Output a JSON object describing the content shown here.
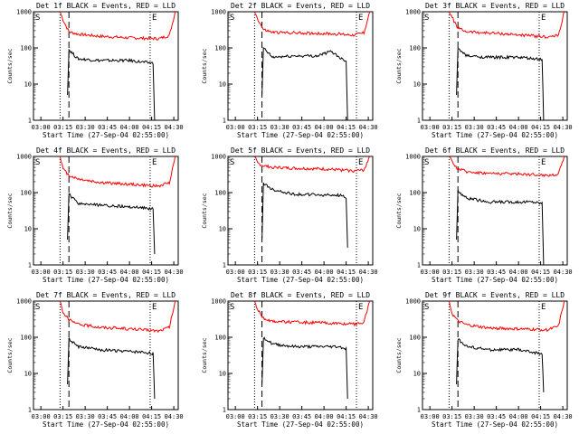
{
  "chart_data": [
    {
      "type": "line",
      "title": "Det 1f BLACK = Events, RED = LLD",
      "xlabel": "Start Time (27-Sep-04 02:55:00)",
      "ylabel": "Counts/sec",
      "yscale": "log",
      "ylim": [
        1,
        1000
      ],
      "y_ticks": [
        "1",
        "10",
        "100",
        "1000"
      ],
      "x_ticks": [
        "03:00",
        "03:15",
        "03:30",
        "03:45",
        "04:00",
        "04:15",
        "04:30"
      ],
      "xlim": [
        "02:55",
        "04:33"
      ],
      "markers": {
        "S": "S",
        "E": "E"
      },
      "dotted_lines": [
        "03:13",
        "04:14"
      ],
      "dashed_line": "03:19",
      "series": [
        {
          "color": "#ff0000",
          "x": [
            "03:13",
            "03:15",
            "03:19",
            "03:25",
            "03:40",
            "04:00",
            "04:20",
            "04:27",
            "04:31"
          ],
          "values": [
            1000,
            600,
            280,
            240,
            210,
            190,
            180,
            220,
            1000
          ]
        },
        {
          "color": "#000000",
          "x": [
            "03:18",
            "03:19",
            "03:25",
            "03:40",
            "04:00",
            "04:10",
            "04:16",
            "04:17"
          ],
          "values": [
            5,
            90,
            50,
            45,
            45,
            40,
            38,
            1
          ]
        }
      ]
    },
    {
      "type": "line",
      "title": "Det 2f BLACK = Events, RED = LLD",
      "xlabel": "Start Time (27-Sep-04 02:55:00)",
      "ylabel": "Counts/sec",
      "yscale": "log",
      "ylim": [
        1,
        1000
      ],
      "y_ticks": [
        "1",
        "10",
        "100",
        "1000"
      ],
      "x_ticks": [
        "03:00",
        "03:15",
        "03:30",
        "03:45",
        "04:00",
        "04:15",
        "04:30"
      ],
      "xlim": [
        "02:55",
        "04:33"
      ],
      "markers": {
        "S": "S",
        "E": "E"
      },
      "dotted_lines": [
        "03:13",
        "04:22"
      ],
      "dashed_line": "03:18",
      "series": [
        {
          "color": "#ff0000",
          "x": [
            "03:13",
            "03:15",
            "03:19",
            "03:25",
            "03:40",
            "04:00",
            "04:20",
            "04:27",
            "04:31"
          ],
          "values": [
            1000,
            650,
            320,
            270,
            260,
            250,
            230,
            260,
            1000
          ]
        },
        {
          "color": "#000000",
          "x": [
            "03:18",
            "03:19",
            "03:25",
            "03:40",
            "03:55",
            "04:05",
            "04:12",
            "04:15",
            "04:16"
          ],
          "values": [
            5,
            100,
            55,
            60,
            60,
            80,
            50,
            45,
            1
          ]
        }
      ]
    },
    {
      "type": "line",
      "title": "Det 3f BLACK = Events, RED = LLD",
      "xlabel": "Start Time (27-Sep-04 02:55:00)",
      "ylabel": "Counts/sec",
      "yscale": "log",
      "ylim": [
        1,
        1000
      ],
      "y_ticks": [
        "1",
        "10",
        "100",
        "1000"
      ],
      "x_ticks": [
        "03:00",
        "03:15",
        "03:30",
        "03:45",
        "04:00",
        "04:15",
        "04:30"
      ],
      "xlim": [
        "02:55",
        "04:33"
      ],
      "markers": {
        "S": "S",
        "E": "E"
      },
      "dotted_lines": [
        "03:13",
        "04:14"
      ],
      "dashed_line": "03:19",
      "series": [
        {
          "color": "#ff0000",
          "x": [
            "03:13",
            "03:15",
            "03:19",
            "03:25",
            "03:40",
            "04:00",
            "04:20",
            "04:27",
            "04:31"
          ],
          "values": [
            1000,
            700,
            350,
            280,
            260,
            230,
            200,
            220,
            1000
          ]
        },
        {
          "color": "#000000",
          "x": [
            "03:18",
            "03:19",
            "03:25",
            "03:40",
            "04:00",
            "04:10",
            "04:16",
            "04:17"
          ],
          "values": [
            5,
            95,
            60,
            55,
            55,
            50,
            48,
            1
          ]
        }
      ]
    },
    {
      "type": "line",
      "title": "Det 4f BLACK = Events, RED = LLD",
      "xlabel": "Start Time (27-Sep-04 02:55:00)",
      "ylabel": "Counts/sec",
      "yscale": "log",
      "ylim": [
        1,
        1000
      ],
      "y_ticks": [
        "1",
        "10",
        "100",
        "1000"
      ],
      "x_ticks": [
        "03:00",
        "03:15",
        "03:30",
        "03:45",
        "04:00",
        "04:15",
        "04:30"
      ],
      "xlim": [
        "02:55",
        "04:33"
      ],
      "markers": {
        "S": "S",
        "E": "E"
      },
      "dotted_lines": [
        "03:13",
        "04:14"
      ],
      "dashed_line": "03:19",
      "series": [
        {
          "color": "#ff0000",
          "x": [
            "03:13",
            "03:15",
            "03:19",
            "03:25",
            "03:40",
            "04:00",
            "04:20",
            "04:27",
            "04:31"
          ],
          "values": [
            1000,
            450,
            300,
            240,
            190,
            170,
            150,
            190,
            1000
          ]
        },
        {
          "color": "#000000",
          "x": [
            "03:18",
            "03:19",
            "03:25",
            "03:40",
            "04:00",
            "04:10",
            "04:16",
            "04:17"
          ],
          "values": [
            5,
            90,
            50,
            45,
            40,
            38,
            35,
            2
          ]
        }
      ]
    },
    {
      "type": "line",
      "title": "Det 5f BLACK = Events, RED = LLD",
      "xlabel": "Start Time (27-Sep-04 02:55:00)",
      "ylabel": "Counts/sec",
      "yscale": "log",
      "ylim": [
        1,
        1000
      ],
      "y_ticks": [
        "1",
        "10",
        "100",
        "1000"
      ],
      "x_ticks": [
        "03:00",
        "03:15",
        "03:30",
        "03:45",
        "04:00",
        "04:15",
        "04:30"
      ],
      "xlim": [
        "02:55",
        "04:33"
      ],
      "markers": {
        "S": "S",
        "E": "E"
      },
      "dotted_lines": [
        "03:13",
        "04:22"
      ],
      "dashed_line": "03:18",
      "series": [
        {
          "color": "#ff0000",
          "x": [
            "03:13",
            "03:15",
            "03:19",
            "03:25",
            "03:40",
            "04:00",
            "04:20",
            "04:27",
            "04:31"
          ],
          "values": [
            1000,
            650,
            550,
            500,
            470,
            450,
            400,
            420,
            1000
          ]
        },
        {
          "color": "#000000",
          "x": [
            "03:18",
            "03:19",
            "03:25",
            "03:40",
            "04:00",
            "04:10",
            "04:15",
            "04:16"
          ],
          "values": [
            5,
            180,
            120,
            90,
            85,
            85,
            75,
            3
          ]
        }
      ]
    },
    {
      "type": "line",
      "title": "Det 6f BLACK = Events, RED = LLD",
      "xlabel": "Start Time (27-Sep-04 02:55:00)",
      "ylabel": "Counts/sec",
      "yscale": "log",
      "ylim": [
        1,
        1000
      ],
      "y_ticks": [
        "1",
        "10",
        "100",
        "1000"
      ],
      "x_ticks": [
        "03:00",
        "03:15",
        "03:30",
        "03:45",
        "04:00",
        "04:15",
        "04:30"
      ],
      "xlim": [
        "02:55",
        "04:33"
      ],
      "markers": {
        "S": "S",
        "E": "E"
      },
      "dotted_lines": [
        "03:13",
        "04:14"
      ],
      "dashed_line": "03:19",
      "series": [
        {
          "color": "#ff0000",
          "x": [
            "03:13",
            "03:15",
            "03:19",
            "03:25",
            "03:40",
            "04:00",
            "04:20",
            "04:27",
            "04:31"
          ],
          "values": [
            1000,
            700,
            450,
            380,
            340,
            330,
            300,
            320,
            1000
          ]
        },
        {
          "color": "#000000",
          "x": [
            "03:18",
            "03:19",
            "03:25",
            "03:40",
            "04:00",
            "04:10",
            "04:16",
            "04:17"
          ],
          "values": [
            5,
            110,
            70,
            55,
            55,
            55,
            50,
            1
          ]
        }
      ]
    },
    {
      "type": "line",
      "title": "Det 7f BLACK = Events, RED = LLD",
      "xlabel": "Start Time (27-Sep-04 02:55:00)",
      "ylabel": "Counts/sec",
      "yscale": "log",
      "ylim": [
        1,
        1000
      ],
      "y_ticks": [
        "1",
        "10",
        "100",
        "1000"
      ],
      "x_ticks": [
        "03:00",
        "03:15",
        "03:30",
        "03:45",
        "04:00",
        "04:15",
        "04:30"
      ],
      "xlim": [
        "02:55",
        "04:33"
      ],
      "markers": {
        "S": "S",
        "E": "E"
      },
      "dotted_lines": [
        "03:13",
        "04:14"
      ],
      "dashed_line": "03:19",
      "series": [
        {
          "color": "#ff0000",
          "x": [
            "03:13",
            "03:15",
            "03:19",
            "03:25",
            "03:40",
            "04:00",
            "04:20",
            "04:27",
            "04:31"
          ],
          "values": [
            1000,
            500,
            300,
            230,
            190,
            170,
            150,
            190,
            1000
          ]
        },
        {
          "color": "#000000",
          "x": [
            "03:18",
            "03:19",
            "03:25",
            "03:40",
            "04:00",
            "04:10",
            "04:16",
            "04:17"
          ],
          "values": [
            5,
            90,
            55,
            45,
            40,
            38,
            35,
            2
          ]
        }
      ]
    },
    {
      "type": "line",
      "title": "Det 8f BLACK = Events, RED = LLD",
      "xlabel": "Start Time (27-Sep-04 02:55:00)",
      "ylabel": "Counts/sec",
      "yscale": "log",
      "ylim": [
        1,
        1000
      ],
      "y_ticks": [
        "1",
        "10",
        "100",
        "1000"
      ],
      "x_ticks": [
        "03:00",
        "03:15",
        "03:30",
        "03:45",
        "04:00",
        "04:15",
        "04:30"
      ],
      "xlim": [
        "02:55",
        "04:33"
      ],
      "markers": {
        "S": "S",
        "E": "E"
      },
      "dotted_lines": [
        "03:13",
        "04:22"
      ],
      "dashed_line": "03:18",
      "series": [
        {
          "color": "#ff0000",
          "x": [
            "03:13",
            "03:15",
            "03:19",
            "03:25",
            "03:40",
            "04:00",
            "04:20",
            "04:27",
            "04:31"
          ],
          "values": [
            1000,
            600,
            330,
            280,
            260,
            250,
            230,
            260,
            1000
          ]
        },
        {
          "color": "#000000",
          "x": [
            "03:18",
            "03:19",
            "03:25",
            "03:40",
            "04:00",
            "04:10",
            "04:15",
            "04:16"
          ],
          "values": [
            5,
            100,
            65,
            55,
            55,
            55,
            48,
            2
          ]
        }
      ]
    },
    {
      "type": "line",
      "title": "Det 9f BLACK = Events, RED = LLD",
      "xlabel": "Start Time (27-Sep-04 02:55:00)",
      "ylabel": "Counts/sec",
      "yscale": "log",
      "ylim": [
        1,
        1000
      ],
      "y_ticks": [
        "1",
        "10",
        "100",
        "1000"
      ],
      "x_ticks": [
        "03:00",
        "03:15",
        "03:30",
        "03:45",
        "04:00",
        "04:15",
        "04:30"
      ],
      "xlim": [
        "02:55",
        "04:33"
      ],
      "markers": {
        "S": "S",
        "E": "E"
      },
      "dotted_lines": [
        "03:13",
        "04:14"
      ],
      "dashed_line": "03:19",
      "series": [
        {
          "color": "#ff0000",
          "x": [
            "03:13",
            "03:15",
            "03:19",
            "03:25",
            "03:40",
            "04:00",
            "04:20",
            "04:27",
            "04:31"
          ],
          "values": [
            1000,
            450,
            280,
            220,
            180,
            170,
            160,
            200,
            1000
          ]
        },
        {
          "color": "#000000",
          "x": [
            "03:18",
            "03:19",
            "03:25",
            "03:40",
            "04:00",
            "04:10",
            "04:16",
            "04:17"
          ],
          "values": [
            5,
            90,
            55,
            45,
            45,
            38,
            35,
            3
          ]
        }
      ]
    }
  ]
}
